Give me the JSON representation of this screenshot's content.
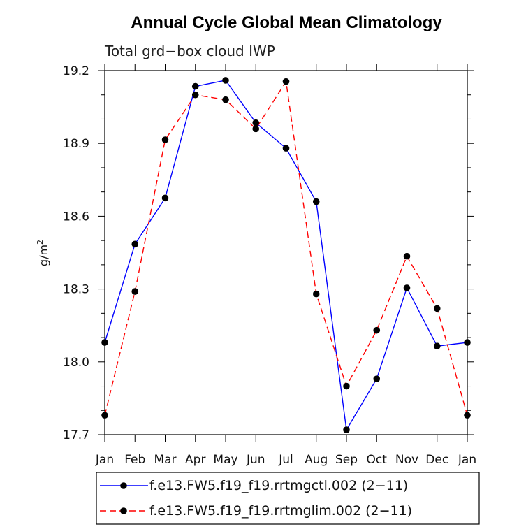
{
  "chart_data": {
    "type": "line",
    "title": "Annual Cycle Global Mean Climatology",
    "subtitle": "Total grd−box cloud IWP",
    "xlabel": "",
    "ylabel": "g/m",
    "ylabel_superscript": "2",
    "categories": [
      "Jan",
      "Feb",
      "Mar",
      "Apr",
      "May",
      "Jun",
      "Jul",
      "Aug",
      "Sep",
      "Oct",
      "Nov",
      "Dec",
      "Jan"
    ],
    "ylim": [
      17.7,
      19.2
    ],
    "yticks": [
      "17.7",
      "18.0",
      "18.3",
      "18.6",
      "18.9",
      "19.2"
    ],
    "yticks_values": [
      17.7,
      18.0,
      18.3,
      18.6,
      18.9,
      19.2
    ],
    "minor_step": 0.1,
    "grid": false,
    "legend_position": "bottom",
    "series": [
      {
        "name": "f.e13.FW5.f19_f19.rrtmgctl.002 (2−11)",
        "color": "#0000ff",
        "dash": "solid",
        "values": [
          18.08,
          18.485,
          18.675,
          19.135,
          19.16,
          18.985,
          18.88,
          18.66,
          17.72,
          17.93,
          18.305,
          18.065,
          18.08
        ]
      },
      {
        "name": "f.e13.FW5.f19_f19.rrtmglim.002 (2−11)",
        "color": "#ff0000",
        "dash": "dashed",
        "values": [
          17.78,
          18.29,
          18.915,
          19.1,
          19.08,
          18.96,
          19.155,
          18.28,
          17.9,
          18.13,
          18.435,
          18.22,
          17.78
        ]
      }
    ]
  }
}
